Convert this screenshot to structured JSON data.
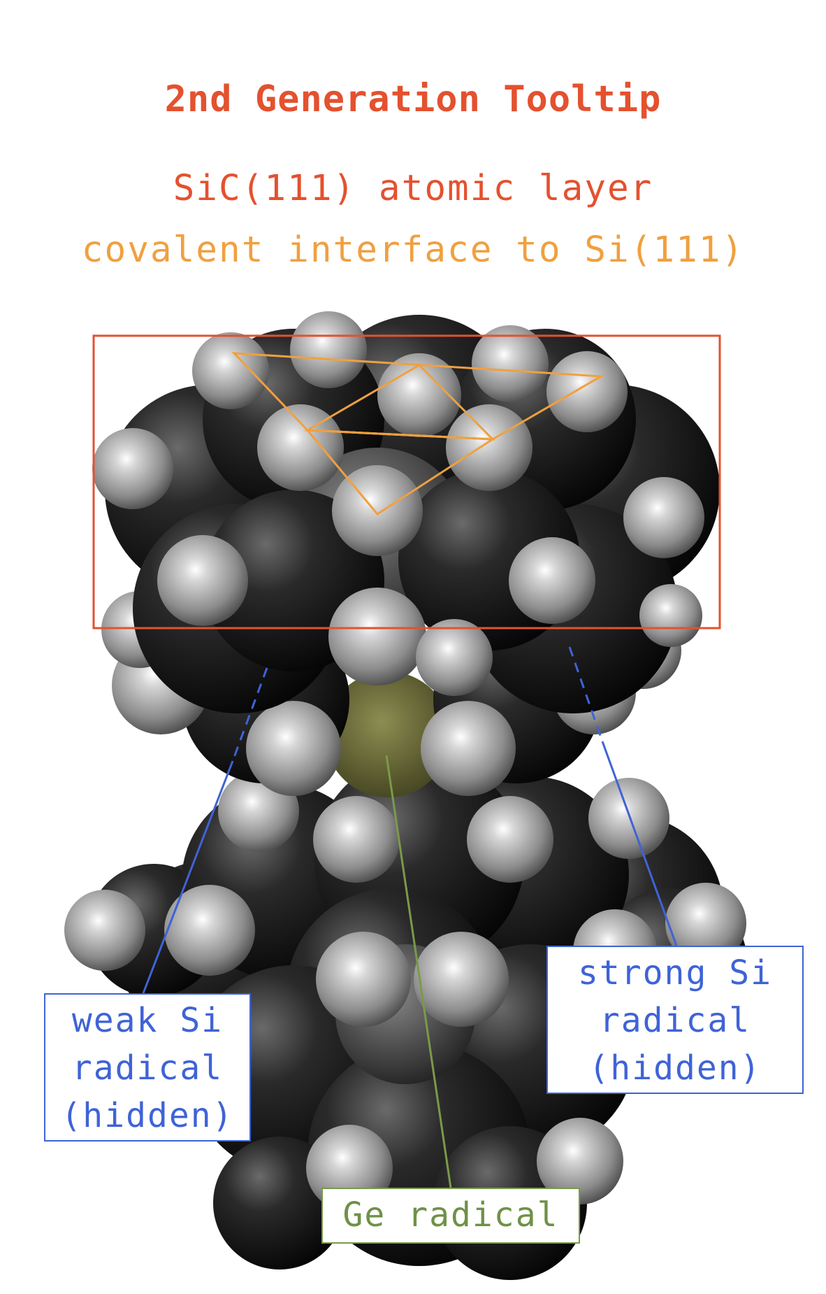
{
  "title": "2nd Generation Tooltip",
  "subtitle_1": "SiC(111) atomic layer",
  "subtitle_2": "covalent interface to Si(111)",
  "labels": {
    "weak": [
      "weak Si",
      "radical",
      "(hidden)"
    ],
    "strong": [
      "strong Si",
      "radical",
      "(hidden)"
    ],
    "ge": "Ge radical"
  },
  "colors": {
    "title": "#e4512f",
    "interface": "#f0a040",
    "radical_label": "#3f63d6",
    "ge_label": "#6f9146",
    "box": "#e4512f"
  }
}
